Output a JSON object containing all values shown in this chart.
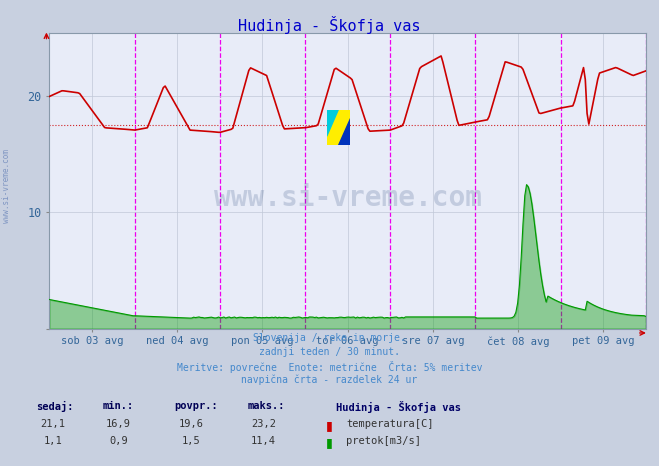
{
  "title": "Hudinja - Škofja vas",
  "title_color": "#0000cc",
  "bg_color": "#c8d0e0",
  "plot_bg_color": "#e8ecf8",
  "grid_color": "#c0c8d8",
  "x_labels": [
    "sob 03 avg",
    "ned 04 avg",
    "pon 05 avg",
    "tor 06 avg",
    "sre 07 avg",
    "čet 08 avg",
    "pet 09 avg"
  ],
  "y_ticks_vals": [
    0,
    10,
    20
  ],
  "y_max": 25.5,
  "temp_color": "#cc0000",
  "flow_color": "#009900",
  "avg_line_color": "#cc0000",
  "avg_line_value": 17.5,
  "vline_color": "#ee00ee",
  "footer_lines": [
    "Slovenija / reke in morje.",
    "zadnji teden / 30 minut.",
    "Meritve: povrečne  Enote: metrične  Črta: 5% meritev",
    "navpična črta - razdelek 24 ur"
  ],
  "footer_color": "#4488cc",
  "legend_title": "Hudinja - Škofja vas",
  "legend_title_color": "#000066",
  "legend_items": [
    {
      "label": "temperatura[C]",
      "color": "#cc0000"
    },
    {
      "label": "pretok[m3/s]",
      "color": "#009900"
    }
  ],
  "stats_headers": [
    "sedaj:",
    "min.:",
    "povpr.:",
    "maks.:"
  ],
  "stats_temp": [
    "21,1",
    "16,9",
    "19,6",
    "23,2"
  ],
  "stats_flow": [
    "1,1",
    "0,9",
    "1,5",
    "11,4"
  ],
  "watermark_text": "www.si-vreme.com",
  "watermark_color": "#1a3a6e",
  "watermark_alpha": 0.18,
  "sidebar_text": "www.si-vreme.com",
  "sidebar_color": "#4466aa",
  "sidebar_alpha": 0.55
}
